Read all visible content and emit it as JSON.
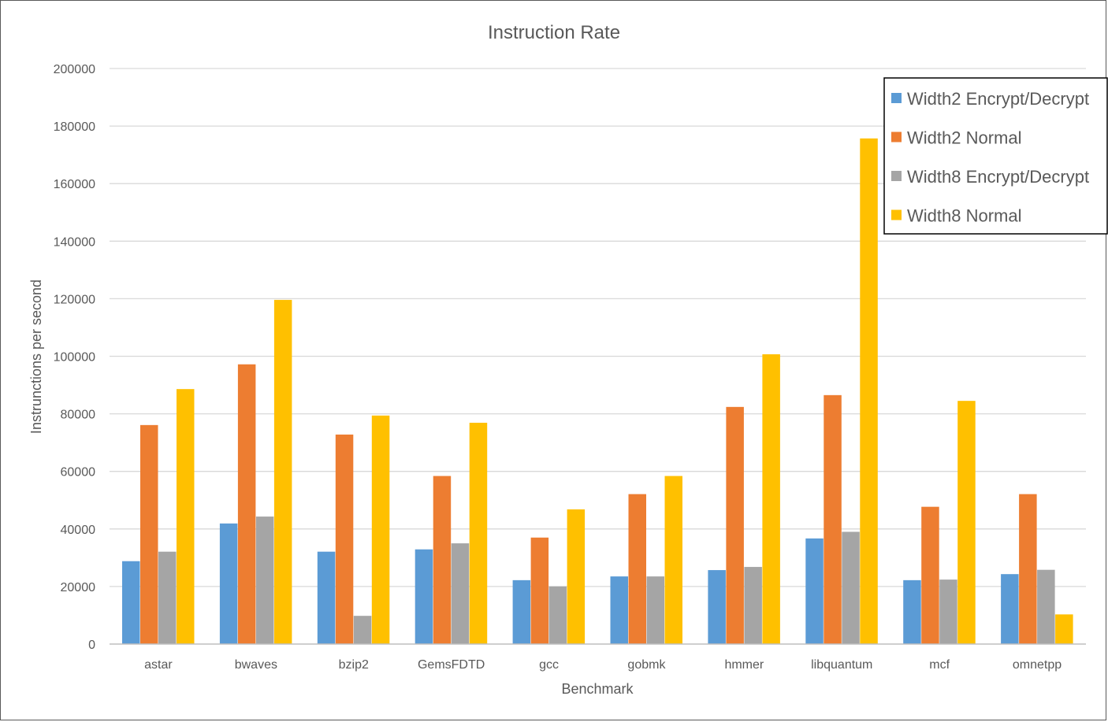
{
  "chart_data": {
    "type": "bar",
    "title": "Instruction Rate",
    "xlabel": "Benchmark",
    "ylabel": "Instrunctions per second",
    "ylim": [
      0,
      200000
    ],
    "yticks": [
      0,
      20000,
      40000,
      60000,
      80000,
      100000,
      120000,
      140000,
      160000,
      180000,
      200000
    ],
    "ytick_labels": [
      "0",
      "20000",
      "40000",
      "60000",
      "80000",
      "100000",
      "120000",
      "140000",
      "160000",
      "180000",
      "200000"
    ],
    "grid": true,
    "legend_position": "top-right",
    "categories": [
      "astar",
      "bwaves",
      "bzip2",
      "GemsFDTD",
      "gcc",
      "gobmk",
      "hmmer",
      "libquantum",
      "mcf",
      "omnetpp"
    ],
    "series": [
      {
        "name": "Width2 Encrypt/Decrypt",
        "color": "#5B9BD5",
        "values": [
          28800,
          41900,
          32100,
          32900,
          22200,
          23500,
          25700,
          36700,
          22200,
          24300
        ]
      },
      {
        "name": "Width2 Normal",
        "color": "#ED7D31",
        "values": [
          76100,
          97200,
          72800,
          58400,
          37000,
          52100,
          82400,
          86500,
          47700,
          52100
        ]
      },
      {
        "name": "Width8 Encrypt/Decrypt",
        "color": "#A5A5A5",
        "values": [
          32100,
          44300,
          9800,
          35000,
          20000,
          23500,
          26800,
          39000,
          22400,
          25800
        ]
      },
      {
        "name": "Width8 Normal",
        "color": "#FFC000",
        "values": [
          88600,
          119600,
          79400,
          76900,
          46800,
          58400,
          100700,
          175700,
          84500,
          10300
        ]
      }
    ],
    "colors": {
      "grid": "#D9D9D9",
      "axis": "#BFBFBF",
      "text": "#595959",
      "legend_border": "#000000"
    }
  }
}
